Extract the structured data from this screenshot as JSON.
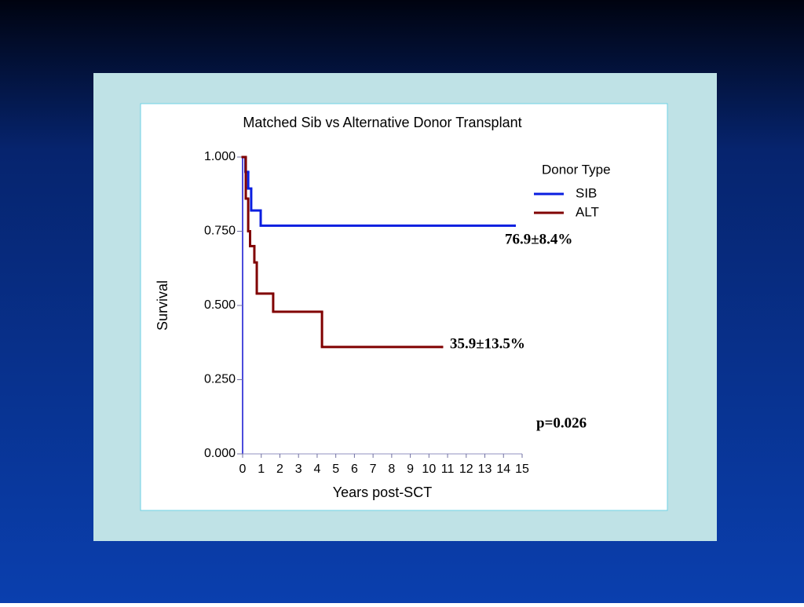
{
  "chart_data": {
    "type": "step",
    "title": "Matched Sib vs Alternative Donor Transplant",
    "x_label": "Years post-SCT",
    "y_label": "Survival",
    "xlim": [
      0,
      15
    ],
    "ylim": [
      0,
      1
    ],
    "xticks": [
      0,
      1,
      2,
      3,
      4,
      5,
      6,
      7,
      8,
      9,
      10,
      11,
      12,
      13,
      14,
      15
    ],
    "yticks": [
      {
        "value": 0,
        "label": "0.000"
      },
      {
        "value": 0.25,
        "label": "0.250"
      },
      {
        "value": 0.5,
        "label": "0.500"
      },
      {
        "value": 0.75,
        "label": "0.750"
      },
      {
        "value": 1,
        "label": "1.000"
      }
    ],
    "legend_title": "Donor Type",
    "legend_position": "upper right",
    "series": [
      {
        "name": "SIB",
        "color": "#0a1ee0",
        "x": [
          0,
          0.15,
          0.3,
          0.46,
          0.97,
          14.6
        ],
        "values": [
          1,
          0.95,
          0.894,
          0.82,
          0.769,
          0.769
        ]
      },
      {
        "name": "ALT",
        "color": "#800000",
        "x": [
          0,
          0.17,
          0.3,
          0.4,
          0.63,
          0.76,
          1.64,
          4.26,
          10.7
        ],
        "values": [
          1,
          0.86,
          0.75,
          0.7,
          0.645,
          0.54,
          0.479,
          0.36,
          0.36
        ]
      }
    ],
    "annotations": [
      "76.9±8.4%",
      "35.9±13.5%",
      "p=0.026"
    ]
  }
}
